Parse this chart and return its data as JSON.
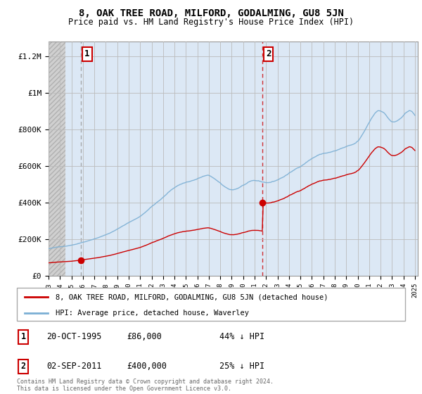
{
  "title": "8, OAK TREE ROAD, MILFORD, GODALMING, GU8 5JN",
  "subtitle": "Price paid vs. HM Land Registry's House Price Index (HPI)",
  "ylabel_ticks": [
    "£0",
    "£200K",
    "£400K",
    "£600K",
    "£800K",
    "£1M",
    "£1.2M"
  ],
  "ytick_values": [
    0,
    200000,
    400000,
    600000,
    800000,
    1000000,
    1200000
  ],
  "ylim": [
    0,
    1280000
  ],
  "sale1_year": 1995.83,
  "sale1_price": 86000,
  "sale2_year": 2011.67,
  "sale2_price": 400000,
  "red_color": "#cc0000",
  "blue_color": "#7bafd4",
  "bg_hatch_color": "#d8d8d8",
  "bg_blue_color": "#dce8f5",
  "grid_color": "#bbbbbb",
  "legend_label_red": "8, OAK TREE ROAD, MILFORD, GODALMING, GU8 5JN (detached house)",
  "legend_label_blue": "HPI: Average price, detached house, Waverley",
  "xstart_year": 1993.0,
  "xend_year": 2025.25,
  "footer": "Contains HM Land Registry data © Crown copyright and database right 2024.\nThis data is licensed under the Open Government Licence v3.0."
}
